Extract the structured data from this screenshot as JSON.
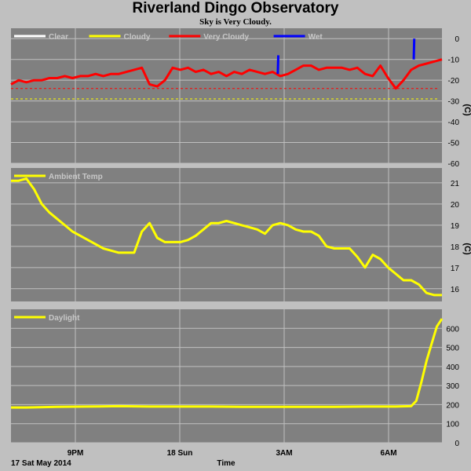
{
  "header": {
    "title": "Riverland Dingo Observatory",
    "subtitle": "Sky is Very Cloudy."
  },
  "footer": {
    "date_label": "17 Sat May 2014",
    "axis_label": "Time"
  },
  "colors": {
    "panel_bg": "#808080",
    "grid": "#c0c0c0",
    "clear": "#ffffff",
    "cloudy": "#ffff00",
    "very_cloudy": "#ff0000",
    "wet": "#0000ff",
    "ambient": "#ffff00",
    "daylight": "#ffff00"
  },
  "chart_data": [
    {
      "type": "line",
      "title": "",
      "units": "(C)",
      "x_ticks": [
        "9PM",
        "18 Sun",
        "3AM",
        "6AM"
      ],
      "xlim": [
        "17:30",
        "07:30"
      ],
      "ylim": [
        -60,
        5
      ],
      "y_ticks": [
        0,
        -10,
        -20,
        -30,
        -40,
        -50,
        -60
      ],
      "grid": true,
      "legend": {
        "placement": "top-left",
        "entries": [
          "Clear",
          "Cloudy",
          "Very Cloudy",
          "Wet"
        ]
      },
      "thresholds": [
        {
          "name": "Very Cloudy",
          "value": -24,
          "style": "dashed"
        },
        {
          "name": "Cloudy",
          "value": -29,
          "style": "dashed"
        }
      ],
      "series": [
        {
          "name": "Very Cloudy",
          "x": [
            "17:30",
            "17:45",
            "18:00",
            "18:15",
            "18:30",
            "18:45",
            "19:00",
            "19:15",
            "19:30",
            "19:45",
            "20:00",
            "20:15",
            "20:30",
            "20:45",
            "21:00",
            "21:15",
            "21:30",
            "21:45",
            "22:00",
            "22:15",
            "22:30",
            "22:45",
            "23:00",
            "23:15",
            "23:30",
            "23:45",
            "00:00",
            "00:15",
            "00:30",
            "00:45",
            "01:00",
            "01:15",
            "01:30",
            "01:45",
            "02:00",
            "02:15",
            "02:30",
            "02:45",
            "03:00",
            "03:15",
            "03:30",
            "03:45",
            "04:00",
            "04:15",
            "04:30",
            "04:45",
            "05:00",
            "05:15",
            "05:30",
            "05:45",
            "06:00",
            "06:15",
            "06:30",
            "06:45",
            "07:00",
            "07:15",
            "07:30"
          ],
          "y": [
            -22,
            -20,
            -21,
            -20,
            -20,
            -19,
            -19,
            -18,
            -19,
            -18,
            -18,
            -17,
            -18,
            -17,
            -17,
            -16,
            -15,
            -14,
            -22,
            -23,
            -20,
            -14,
            -15,
            -14,
            -16,
            -15,
            -17,
            -16,
            -18,
            -16,
            -17,
            -15,
            -16,
            -17,
            -16,
            -18,
            -17,
            -15,
            -13,
            -13,
            -15,
            -14,
            -14,
            -14,
            -15,
            -14,
            -17,
            -18,
            -13,
            -19,
            -24,
            -20,
            -15,
            -13,
            -12,
            -11,
            -10
          ]
        },
        {
          "name": "Wet",
          "x": [
            "02:10",
            "02:11",
            "06:35",
            "06:36"
          ],
          "y": [
            -17,
            -8,
            -10,
            0
          ]
        }
      ]
    },
    {
      "type": "line",
      "title": "",
      "units": "(C)",
      "x_ticks": [
        "9PM",
        "18 Sun",
        "3AM",
        "6AM"
      ],
      "xlim": [
        "17:30",
        "07:30"
      ],
      "ylim": [
        15.4,
        21.7
      ],
      "y_ticks": [
        21,
        20,
        19,
        18,
        17,
        16
      ],
      "grid": true,
      "legend": {
        "placement": "top-left",
        "entries": [
          "Ambient Temp"
        ]
      },
      "series": [
        {
          "name": "Ambient Temp",
          "x": [
            "17:30",
            "17:45",
            "18:00",
            "18:15",
            "18:30",
            "18:45",
            "19:00",
            "19:15",
            "19:30",
            "19:45",
            "20:00",
            "20:15",
            "20:30",
            "20:45",
            "21:00",
            "21:15",
            "21:30",
            "21:45",
            "22:00",
            "22:15",
            "22:30",
            "22:45",
            "23:00",
            "23:15",
            "23:30",
            "23:45",
            "00:00",
            "00:15",
            "00:30",
            "00:45",
            "01:00",
            "01:15",
            "01:30",
            "01:45",
            "02:00",
            "02:15",
            "02:30",
            "02:45",
            "03:00",
            "03:15",
            "03:30",
            "03:45",
            "04:00",
            "04:15",
            "04:30",
            "04:45",
            "05:00",
            "05:15",
            "05:30",
            "05:45",
            "06:00",
            "06:15",
            "06:30",
            "06:45",
            "07:00",
            "07:15",
            "07:30"
          ],
          "y": [
            21.1,
            21.1,
            21.2,
            20.7,
            20.0,
            19.6,
            19.3,
            19.0,
            18.7,
            18.5,
            18.3,
            18.1,
            17.9,
            17.8,
            17.7,
            17.7,
            17.7,
            18.7,
            19.1,
            18.4,
            18.2,
            18.2,
            18.2,
            18.3,
            18.5,
            18.8,
            19.1,
            19.1,
            19.2,
            19.1,
            19.0,
            18.9,
            18.8,
            18.6,
            19.0,
            19.1,
            19.0,
            18.8,
            18.7,
            18.7,
            18.5,
            18.0,
            17.9,
            17.9,
            17.9,
            17.5,
            17.0,
            17.6,
            17.4,
            17.0,
            16.7,
            16.4,
            16.4,
            16.2,
            15.8,
            15.7,
            15.7
          ]
        }
      ]
    },
    {
      "type": "line",
      "title": "",
      "units": "",
      "x_ticks": [
        "9PM",
        "18 Sun",
        "3AM",
        "6AM"
      ],
      "xlim": [
        "17:30",
        "07:30"
      ],
      "ylim": [
        0,
        700
      ],
      "y_ticks": [
        600,
        500,
        400,
        300,
        200,
        100,
        0
      ],
      "grid": true,
      "legend": {
        "placement": "top-left",
        "entries": [
          "Daylight"
        ]
      },
      "series": [
        {
          "name": "Daylight",
          "x": [
            "17:30",
            "18:00",
            "19:00",
            "20:00",
            "21:00",
            "22:00",
            "23:00",
            "00:00",
            "01:00",
            "02:00",
            "03:00",
            "04:00",
            "05:00",
            "06:00",
            "06:30",
            "06:40",
            "06:50",
            "07:00",
            "07:10",
            "07:20",
            "07:30"
          ],
          "y": [
            185,
            185,
            188,
            190,
            192,
            190,
            190,
            190,
            188,
            188,
            188,
            188,
            190,
            190,
            192,
            220,
            320,
            430,
            520,
            610,
            650
          ]
        }
      ]
    }
  ]
}
